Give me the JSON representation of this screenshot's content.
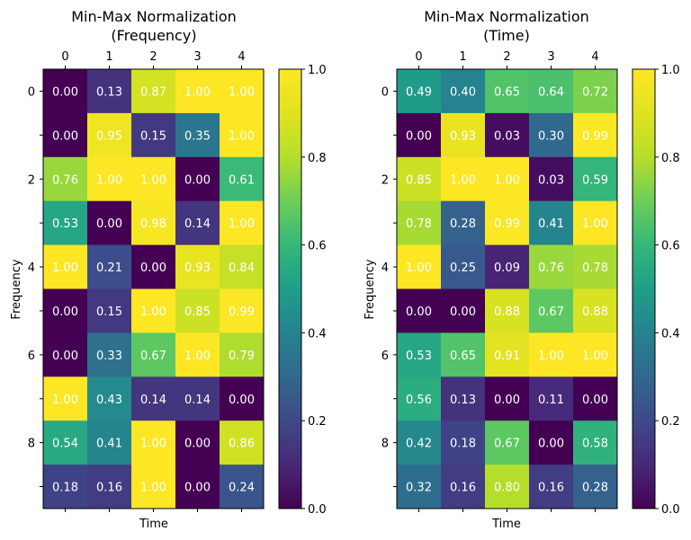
{
  "chart_data": [
    {
      "type": "heatmap",
      "title_line1": "Min-Max Normalization",
      "title_line2": "(Frequency)",
      "xlabel": "Time",
      "ylabel": "Frequency",
      "x_tick_labels": [
        "0",
        "1",
        "2",
        "3",
        "4"
      ],
      "y_tick_labels": [
        "0",
        "2",
        "4",
        "6",
        "8"
      ],
      "colorbar_tick_labels": [
        "0.0",
        "0.2",
        "0.4",
        "0.6",
        "0.8",
        "1.0"
      ],
      "colormap": "viridis",
      "vmin": 0,
      "vmax": 1,
      "values": [
        [
          0.0,
          0.13,
          0.87,
          1.0,
          1.0
        ],
        [
          0.0,
          0.95,
          0.15,
          0.35,
          1.0
        ],
        [
          0.76,
          1.0,
          1.0,
          0.0,
          0.61
        ],
        [
          0.53,
          0.0,
          0.98,
          0.14,
          1.0
        ],
        [
          1.0,
          0.21,
          0.0,
          0.93,
          0.84
        ],
        [
          0.0,
          0.15,
          1.0,
          0.85,
          0.99
        ],
        [
          0.0,
          0.33,
          0.67,
          1.0,
          0.79
        ],
        [
          1.0,
          0.43,
          0.14,
          0.14,
          0.0
        ],
        [
          0.54,
          0.41,
          1.0,
          0.0,
          0.86
        ],
        [
          0.18,
          0.16,
          1.0,
          0.0,
          0.24
        ]
      ]
    },
    {
      "type": "heatmap",
      "title_line1": "Min-Max Normalization",
      "title_line2": "(Time)",
      "xlabel": "Time",
      "ylabel": "Frequency",
      "x_tick_labels": [
        "0",
        "1",
        "2",
        "3",
        "4"
      ],
      "y_tick_labels": [
        "0",
        "2",
        "4",
        "6",
        "8"
      ],
      "colorbar_tick_labels": [
        "0.0",
        "0.2",
        "0.4",
        "0.6",
        "0.8",
        "1.0"
      ],
      "colormap": "viridis",
      "vmin": 0,
      "vmax": 1,
      "values": [
        [
          0.49,
          0.4,
          0.65,
          0.64,
          0.72
        ],
        [
          0.0,
          0.93,
          0.03,
          0.3,
          0.99
        ],
        [
          0.85,
          1.0,
          1.0,
          0.03,
          0.59
        ],
        [
          0.78,
          0.28,
          0.99,
          0.41,
          1.0
        ],
        [
          1.0,
          0.25,
          0.09,
          0.76,
          0.78
        ],
        [
          0.0,
          0.0,
          0.88,
          0.67,
          0.88
        ],
        [
          0.53,
          0.65,
          0.91,
          1.0,
          1.0
        ],
        [
          0.56,
          0.13,
          0.0,
          0.11,
          0.0
        ],
        [
          0.42,
          0.18,
          0.67,
          0.0,
          0.58
        ],
        [
          0.32,
          0.16,
          0.8,
          0.16,
          0.28
        ]
      ]
    }
  ]
}
